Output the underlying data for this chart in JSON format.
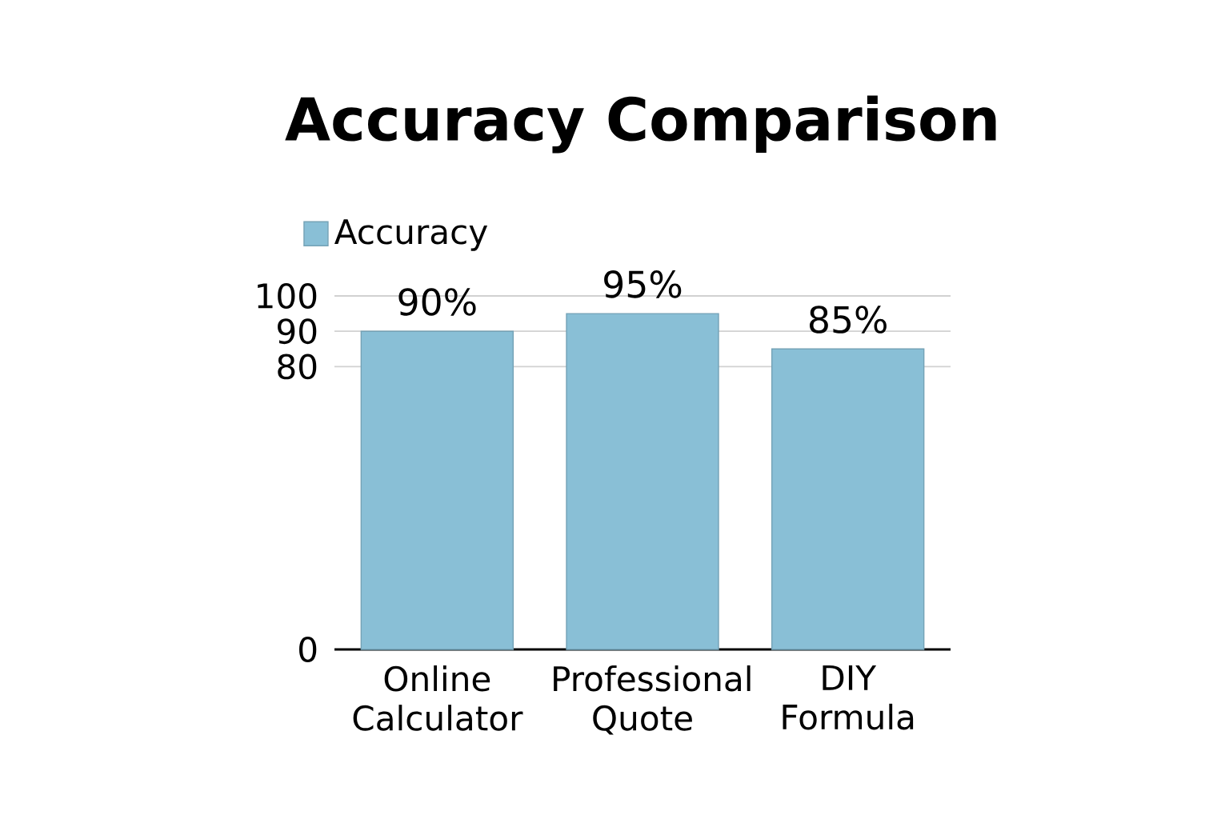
{
  "chart_data": {
    "type": "bar",
    "title": "Accuracy Comparison",
    "categories": [
      "Online Calculator",
      "Professional Quote",
      "DIY Formula"
    ],
    "series": [
      {
        "name": "Accuracy",
        "color": "#89bfd6",
        "values": [
          90,
          95,
          85
        ],
        "value_labels": [
          "90%",
          "95%",
          "85%"
        ]
      }
    ],
    "ylim": [
      0,
      100
    ],
    "yticks": [
      0,
      80,
      90,
      100
    ],
    "grid": "y",
    "legend": "top left"
  }
}
